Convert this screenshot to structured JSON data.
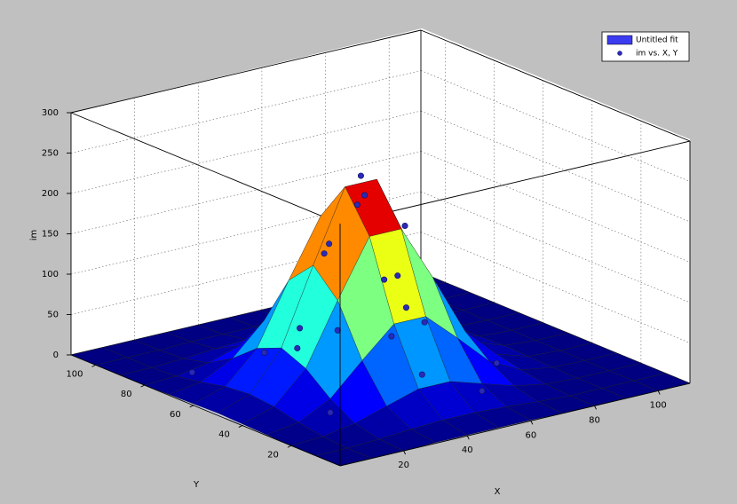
{
  "chart_data": {
    "type": "surface3d",
    "xlabel": "X",
    "ylabel": "Y",
    "zlabel": "im",
    "xlim": [
      0,
      110
    ],
    "ylim": [
      0,
      110
    ],
    "zlim": [
      0,
      300
    ],
    "xticks": [
      20,
      40,
      60,
      80,
      100
    ],
    "yticks": [
      20,
      40,
      60,
      80,
      100
    ],
    "zticks": [
      0,
      50,
      100,
      150,
      200,
      250,
      300
    ],
    "grid": true,
    "colormap": "jet",
    "legend": "upper right",
    "series": [
      {
        "name": "Untitled fit",
        "type": "surface",
        "color": "#3b3bf0",
        "x": [
          0,
          10,
          20,
          30,
          40,
          50,
          60,
          70,
          80,
          90,
          100,
          110
        ],
        "y": [
          0,
          10,
          20,
          30,
          40,
          50,
          60,
          70,
          80,
          90,
          100,
          110
        ],
        "z": [
          [
            0,
            0,
            0,
            1,
            1,
            1,
            1,
            0,
            0,
            0,
            0,
            0
          ],
          [
            0,
            0,
            2,
            5,
            7,
            7,
            5,
            2,
            0,
            0,
            0,
            0
          ],
          [
            0,
            2,
            9,
            21,
            33,
            33,
            21,
            9,
            2,
            0,
            0,
            0
          ],
          [
            1,
            7,
            27,
            65,
            101,
            101,
            65,
            27,
            7,
            1,
            0,
            0
          ],
          [
            2,
            14,
            52,
            127,
            197,
            197,
            127,
            52,
            14,
            2,
            0,
            0
          ],
          [
            3,
            17,
            65,
            158,
            246,
            246,
            158,
            65,
            17,
            3,
            0,
            0
          ],
          [
            2,
            14,
            52,
            127,
            197,
            197,
            127,
            52,
            14,
            2,
            0,
            0
          ],
          [
            1,
            7,
            27,
            65,
            101,
            101,
            65,
            27,
            7,
            1,
            0,
            0
          ],
          [
            0,
            2,
            9,
            21,
            33,
            33,
            21,
            9,
            2,
            0,
            0,
            0
          ],
          [
            0,
            0,
            2,
            5,
            7,
            7,
            5,
            2,
            0,
            0,
            0,
            0
          ],
          [
            0,
            0,
            0,
            1,
            1,
            1,
            1,
            0,
            0,
            0,
            0,
            0
          ],
          [
            0,
            0,
            0,
            0,
            0,
            0,
            0,
            0,
            0,
            0,
            0,
            0
          ]
        ]
      },
      {
        "name": "im vs. X, Y",
        "type": "scatter",
        "color": "#2a2ab8",
        "x": [
          45,
          40,
          50,
          35,
          55,
          45,
          45,
          30,
          60,
          25,
          65,
          45,
          45,
          20,
          70,
          80,
          15,
          90,
          60,
          30
        ],
        "y": [
          50,
          45,
          55,
          50,
          45,
          35,
          65,
          40,
          60,
          50,
          50,
          25,
          75,
          30,
          70,
          40,
          80,
          90,
          20,
          70
        ],
        "z": [
          255,
          230,
          220,
          180,
          190,
          150,
          140,
          90,
          100,
          60,
          55,
          40,
          35,
          10,
          8,
          3,
          2,
          0,
          12,
          25
        ]
      }
    ]
  }
}
